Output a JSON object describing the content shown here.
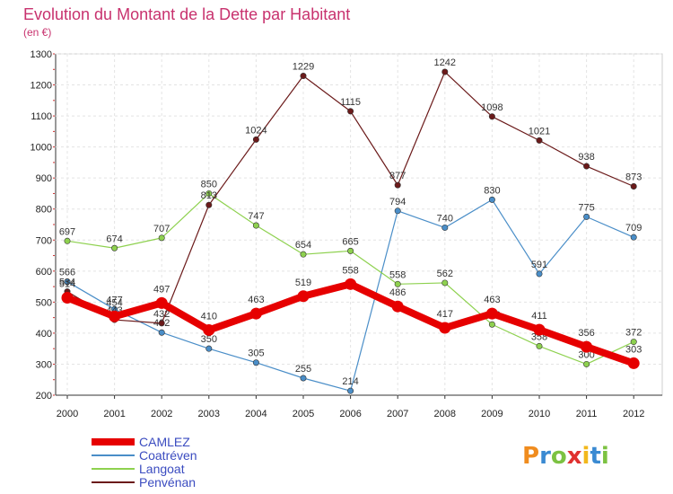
{
  "chart_data": {
    "type": "line",
    "title": "Evolution du Montant de la Dette par Habitant",
    "subtitle": "(en €)",
    "xlabel": "",
    "ylabel": "",
    "categories": [
      "2000",
      "2001",
      "2002",
      "2003",
      "2004",
      "2005",
      "2006",
      "2007",
      "2008",
      "2009",
      "2010",
      "2011",
      "2012"
    ],
    "ylim": [
      200,
      1300
    ],
    "yticks": [
      200,
      300,
      400,
      500,
      600,
      700,
      800,
      900,
      1000,
      1100,
      1200,
      1300
    ],
    "grid": true,
    "legend_position": "bottom-left",
    "series": [
      {
        "name": "CAMLEZ",
        "color": "#e60000",
        "values": [
          514,
          454,
          497,
          410,
          463,
          519,
          558,
          486,
          417,
          463,
          411,
          356,
          303
        ]
      },
      {
        "name": "Coatréven",
        "color": "#4a8ec8",
        "values": [
          566,
          477,
          402,
          350,
          305,
          255,
          214,
          794,
          740,
          830,
          591,
          775,
          709
        ]
      },
      {
        "name": "Langoat",
        "color": "#8ed14f",
        "values": [
          697,
          674,
          707,
          850,
          747,
          654,
          665,
          558,
          562,
          428,
          358,
          300,
          372
        ]
      },
      {
        "name": "Penvénan",
        "color": "#6b1a1a",
        "values": [
          534,
          443,
          432,
          813,
          1024,
          1229,
          1115,
          877,
          1242,
          1098,
          1021,
          938,
          873
        ]
      }
    ]
  },
  "brand": {
    "logo_text": "Proxiti",
    "colors": [
      "#f08c1e",
      "#3a8ad2",
      "#7cc242",
      "#e0312f",
      "#f2b81c",
      "#3a8ad2",
      "#7cc242"
    ]
  }
}
